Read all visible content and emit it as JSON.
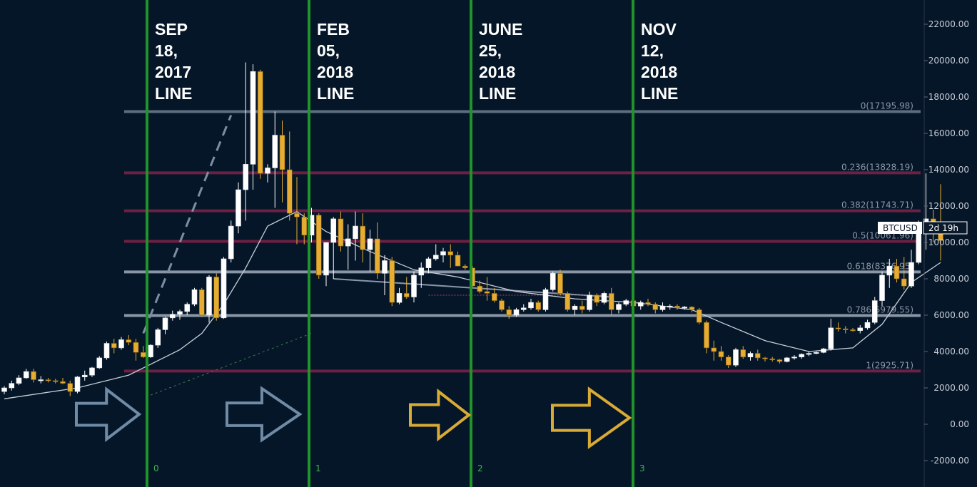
{
  "chart_data": {
    "type": "candlestick",
    "symbol": "BTCUSD",
    "countdown": "2d 19h",
    "y_axis": {
      "min": -2000,
      "max": 22000,
      "side": "right",
      "ticks": [
        "22000.00",
        "20000.00",
        "18000.00",
        "16000.00",
        "14000.00",
        "12000.00",
        "10000.00",
        "8000.00",
        "6000.00",
        "4000.00",
        "2000.00",
        "0.00",
        "-2000.00"
      ],
      "tick_values": [
        22000,
        20000,
        18000,
        16000,
        14000,
        12000,
        10000,
        8000,
        6000,
        4000,
        2000,
        0,
        -2000
      ]
    },
    "x_axis": {
      "bars": 125,
      "unit": "bar index"
    },
    "candles": [
      [
        1800,
        2100,
        1650,
        2000
      ],
      [
        2000,
        2400,
        1850,
        2250
      ],
      [
        2250,
        2700,
        2150,
        2550
      ],
      [
        2550,
        3050,
        2500,
        2900
      ],
      [
        2900,
        3050,
        2300,
        2450
      ],
      [
        2450,
        2650,
        2250,
        2450
      ],
      [
        2450,
        2550,
        2300,
        2400
      ],
      [
        2400,
        2500,
        2250,
        2350
      ],
      [
        2350,
        2550,
        2200,
        2250
      ],
      [
        2250,
        2400,
        1550,
        1800
      ],
      [
        1800,
        2650,
        1700,
        2600
      ],
      [
        2600,
        2950,
        2400,
        2700
      ],
      [
        2700,
        3150,
        2600,
        3100
      ],
      [
        3100,
        3750,
        3050,
        3650
      ],
      [
        3650,
        4550,
        3550,
        4450
      ],
      [
        4450,
        4700,
        3900,
        4200
      ],
      [
        4200,
        4800,
        4100,
        4650
      ],
      [
        4650,
        4900,
        4350,
        4500
      ],
      [
        4500,
        4700,
        3500,
        3950
      ],
      [
        3950,
        4300,
        3650,
        3700
      ],
      [
        3700,
        4400,
        3650,
        4350
      ],
      [
        4350,
        5300,
        4200,
        5200
      ],
      [
        5200,
        5900,
        4950,
        5850
      ],
      [
        5850,
        6250,
        5700,
        6050
      ],
      [
        6050,
        6300,
        5750,
        6200
      ],
      [
        6200,
        6700,
        6000,
        6600
      ],
      [
        6600,
        7500,
        6500,
        7400
      ],
      [
        7400,
        7500,
        5900,
        6000
      ],
      [
        6000,
        8200,
        5600,
        8100
      ],
      [
        8100,
        8300,
        5700,
        5850
      ],
      [
        5850,
        9200,
        5800,
        9100
      ],
      [
        9100,
        11200,
        8900,
        10900
      ],
      [
        10900,
        13300,
        10500,
        12900
      ],
      [
        12900,
        19900,
        11200,
        14300
      ],
      [
        14300,
        19800,
        12900,
        19400
      ],
      [
        19400,
        19500,
        13500,
        13800
      ],
      [
        13800,
        14300,
        13300,
        14100
      ],
      [
        14100,
        17200,
        11900,
        15900
      ],
      [
        15900,
        16700,
        12200,
        14000
      ],
      [
        14000,
        16100,
        11200,
        11600
      ],
      [
        11600,
        13600,
        9900,
        11400
      ],
      [
        11400,
        11600,
        9900,
        10400
      ],
      [
        10400,
        11900,
        10000,
        11500
      ],
      [
        11500,
        11600,
        8000,
        8200
      ],
      [
        8200,
        10000,
        7600,
        10000
      ],
      [
        10000,
        11400,
        8000,
        11300
      ],
      [
        11300,
        11700,
        9500,
        9800
      ],
      [
        9800,
        11000,
        8500,
        10200
      ],
      [
        10200,
        11700,
        9000,
        10900
      ],
      [
        10900,
        11600,
        8900,
        9600
      ],
      [
        9600,
        10700,
        8400,
        10200
      ],
      [
        10200,
        11100,
        8000,
        8300
      ],
      [
        8300,
        9300,
        7100,
        9000
      ],
      [
        9000,
        9200,
        6500,
        6700
      ],
      [
        6700,
        7500,
        6600,
        7200
      ],
      [
        7200,
        8100,
        6900,
        7000
      ],
      [
        7000,
        8400,
        6700,
        8200
      ],
      [
        8200,
        8900,
        7500,
        8600
      ],
      [
        8600,
        9200,
        8300,
        9100
      ],
      [
        9100,
        9900,
        9000,
        9300
      ],
      [
        9300,
        9700,
        8900,
        9500
      ],
      [
        9500,
        9900,
        8600,
        9300
      ],
      [
        9300,
        9500,
        8700,
        8700
      ],
      [
        8700,
        8800,
        8500,
        8600
      ],
      [
        8600,
        8700,
        7500,
        7600
      ],
      [
        7600,
        7900,
        7200,
        7300
      ],
      [
        7300,
        8100,
        6800,
        7200
      ],
      [
        7200,
        7500,
        6700,
        6800
      ],
      [
        6800,
        6900,
        6200,
        6300
      ],
      [
        6300,
        6500,
        5800,
        6000
      ],
      [
        6000,
        6400,
        5900,
        6300
      ],
      [
        6300,
        6600,
        6200,
        6400
      ],
      [
        6400,
        6900,
        6300,
        6700
      ],
      [
        6700,
        6800,
        6200,
        6300
      ],
      [
        6300,
        7500,
        6200,
        7400
      ],
      [
        7400,
        8400,
        7300,
        8300
      ],
      [
        8300,
        8500,
        7100,
        7200
      ],
      [
        7200,
        7300,
        6200,
        6300
      ],
      [
        6300,
        6600,
        6000,
        6500
      ],
      [
        6500,
        6800,
        6100,
        6300
      ],
      [
        6300,
        7300,
        6200,
        7100
      ],
      [
        7100,
        7200,
        6500,
        6700
      ],
      [
        6700,
        7300,
        6600,
        7200
      ],
      [
        7200,
        7500,
        6000,
        6300
      ],
      [
        6300,
        6700,
        6100,
        6600
      ],
      [
        6600,
        6900,
        6500,
        6800
      ],
      [
        6800,
        7000,
        6400,
        6500
      ],
      [
        6500,
        6800,
        6300,
        6700
      ],
      [
        6700,
        6900,
        6500,
        6600
      ],
      [
        6600,
        6700,
        6100,
        6300
      ],
      [
        6300,
        6700,
        6200,
        6500
      ],
      [
        6500,
        6600,
        6300,
        6500
      ],
      [
        6500,
        6600,
        6300,
        6400
      ],
      [
        6400,
        6500,
        6300,
        6450
      ],
      [
        6450,
        6500,
        6150,
        6300
      ],
      [
        6300,
        6400,
        5500,
        5600
      ],
      [
        5600,
        5700,
        3900,
        4200
      ],
      [
        4200,
        4600,
        3500,
        4000
      ],
      [
        4000,
        4300,
        3500,
        3700
      ],
      [
        3700,
        3800,
        3100,
        3250
      ],
      [
        3250,
        4200,
        3150,
        4100
      ],
      [
        4100,
        4300,
        3600,
        3700
      ],
      [
        3700,
        4000,
        3500,
        3900
      ],
      [
        3900,
        4100,
        3500,
        3650
      ],
      [
        3650,
        3700,
        3450,
        3600
      ],
      [
        3600,
        3700,
        3450,
        3550
      ],
      [
        3550,
        3600,
        3350,
        3450
      ],
      [
        3450,
        3700,
        3400,
        3650
      ],
      [
        3650,
        3800,
        3550,
        3700
      ],
      [
        3700,
        3900,
        3600,
        3850
      ],
      [
        3850,
        4000,
        3750,
        3900
      ],
      [
        3900,
        4000,
        3850,
        3950
      ],
      [
        3950,
        4200,
        3900,
        4150
      ],
      [
        4150,
        5800,
        4050,
        5300
      ],
      [
        5300,
        5600,
        5100,
        5250
      ],
      [
        5250,
        5400,
        5000,
        5200
      ],
      [
        5200,
        5300,
        5100,
        5150
      ],
      [
        5150,
        5450,
        5000,
        5300
      ],
      [
        5300,
        5750,
        5200,
        5600
      ],
      [
        5600,
        7000,
        5500,
        6800
      ],
      [
        6800,
        8400,
        6500,
        8200
      ],
      [
        8200,
        9100,
        7500,
        8700
      ],
      [
        8700,
        9100,
        7800,
        8000
      ],
      [
        8000,
        9200,
        7400,
        7600
      ],
      [
        7600,
        9600,
        7500,
        8900
      ]
    ],
    "last_candles": [
      [
        8900,
        11200,
        8800,
        10900
      ],
      [
        10900,
        13800,
        9600,
        11300
      ],
      [
        11300,
        11800,
        10000,
        11000
      ],
      [
        11000,
        13200,
        9000,
        10100
      ]
    ],
    "moving_average": [
      [
        0,
        1400
      ],
      [
        10,
        2000
      ],
      [
        17,
        2700
      ],
      [
        20,
        3300
      ],
      [
        24,
        4100
      ],
      [
        27,
        5000
      ],
      [
        30,
        6600
      ],
      [
        33,
        8600
      ],
      [
        36,
        10900
      ],
      [
        40,
        11700
      ],
      [
        44,
        10600
      ],
      [
        50,
        9500
      ],
      [
        56,
        8500
      ],
      [
        62,
        8100
      ],
      [
        70,
        7300
      ],
      [
        78,
        6900
      ],
      [
        86,
        6700
      ],
      [
        94,
        6300
      ],
      [
        98,
        5600
      ],
      [
        104,
        4600
      ],
      [
        110,
        4000
      ],
      [
        116,
        4200
      ],
      [
        120,
        5500
      ],
      [
        124,
        7800
      ],
      [
        128,
        8900
      ]
    ],
    "fib_levels": [
      {
        "label": "0(17195.98)",
        "value": 17196,
        "color": "#5d6e80"
      },
      {
        "label": "0.236(13828.19)",
        "value": 13830,
        "color": "#6e2043"
      },
      {
        "label": "0.382(11743.71)",
        "value": 11740,
        "color": "#6e2043"
      },
      {
        "label": "0.5(10061.96)",
        "value": 10060,
        "color": "#6e2043"
      },
      {
        "label": "0.618(8376.95)",
        "value": 8377,
        "color": "#8a96a6"
      },
      {
        "label": "0.786(5979.55)",
        "value": 5980,
        "color": "#8a96a6"
      },
      {
        "label": "1(2925.71)",
        "value": 2926,
        "color": "#6e2043"
      }
    ],
    "vertical_lines": [
      {
        "title": [
          "SEP",
          "18,",
          "2017",
          "LINE"
        ],
        "index": "0",
        "bar": 20
      },
      {
        "title": [
          "FEB",
          "05,",
          "2018",
          "LINE"
        ],
        "index": "1",
        "bar": 43
      },
      {
        "title": [
          "JUNE",
          "25,",
          "2018",
          "LINE"
        ],
        "index": "2",
        "bar": 66
      },
      {
        "title": [
          "NOV",
          "12,",
          "2018",
          "LINE"
        ],
        "index": "3",
        "bar": 89
      }
    ],
    "arrows": [
      {
        "color": "#6f8ba6",
        "bar": 10
      },
      {
        "color": "#6f8ba6",
        "bar": 31
      },
      {
        "color": "#d9ab34",
        "bar": 54
      },
      {
        "color": "#d9ab34",
        "bar": 74
      }
    ],
    "colors": {
      "up_candle": "#ffffff",
      "down_candle": "#e6ad32",
      "background": "#051628",
      "vertical_line": "#21932b",
      "axis_text": "#c8ccd6",
      "ma_line": "#c8d0d8"
    }
  }
}
